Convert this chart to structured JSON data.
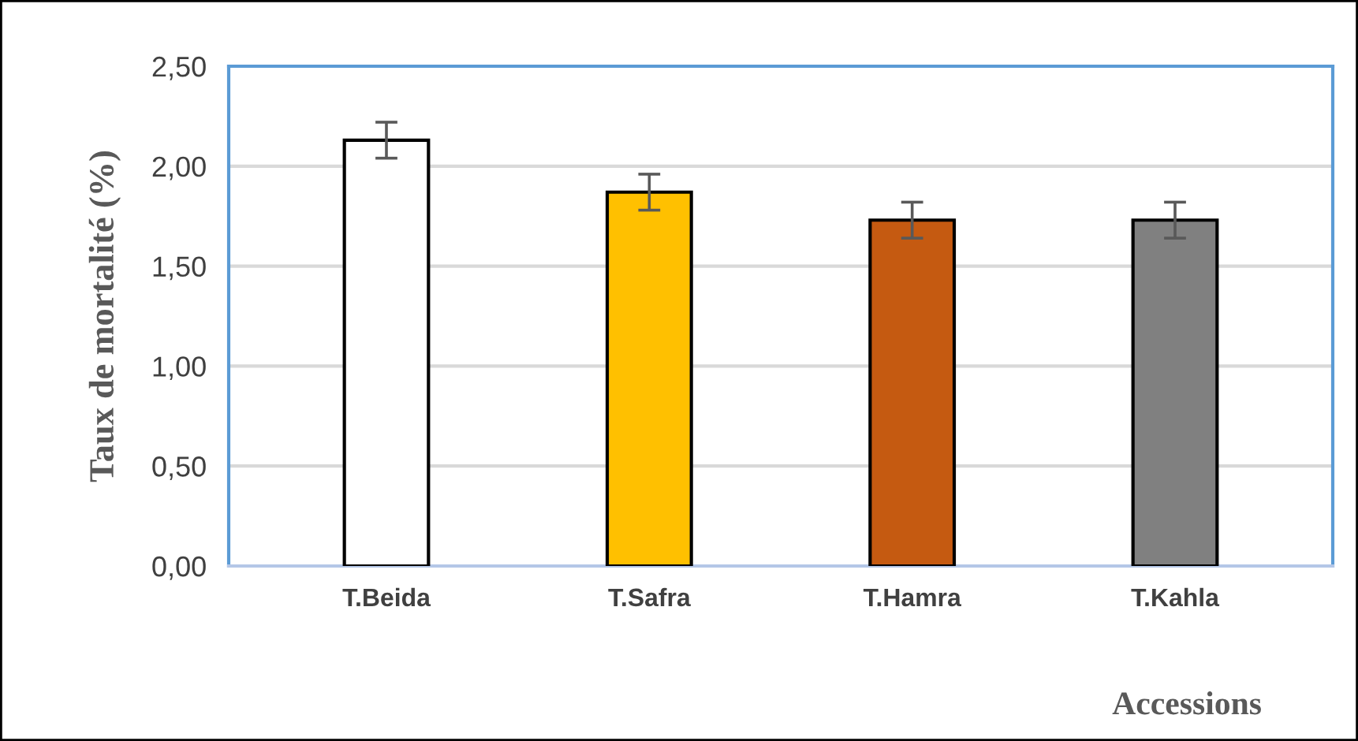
{
  "chart_data": {
    "type": "bar",
    "xlabel": "Accessions",
    "ylabel": "Taux de mortalité (%)",
    "categories": [
      "T.Beida",
      "T.Safra",
      "T.Hamra",
      "T.Kahla"
    ],
    "values": [
      2.13,
      1.87,
      1.73,
      1.73
    ],
    "errors": [
      0.09,
      0.09,
      0.09,
      0.09
    ],
    "colors": [
      "#ffffff",
      "#ffc000",
      "#c55a11",
      "#808080"
    ],
    "ylim": [
      0,
      2.5
    ],
    "yticks": [
      {
        "value": 0,
        "label": "0,00"
      },
      {
        "value": 0.5,
        "label": "0,50"
      },
      {
        "value": 1.0,
        "label": "1,00"
      },
      {
        "value": 1.5,
        "label": "1,50"
      },
      {
        "value": 2.0,
        "label": "2,00"
      },
      {
        "value": 2.5,
        "label": "2,50"
      }
    ],
    "grid": "y",
    "legend": false
  }
}
